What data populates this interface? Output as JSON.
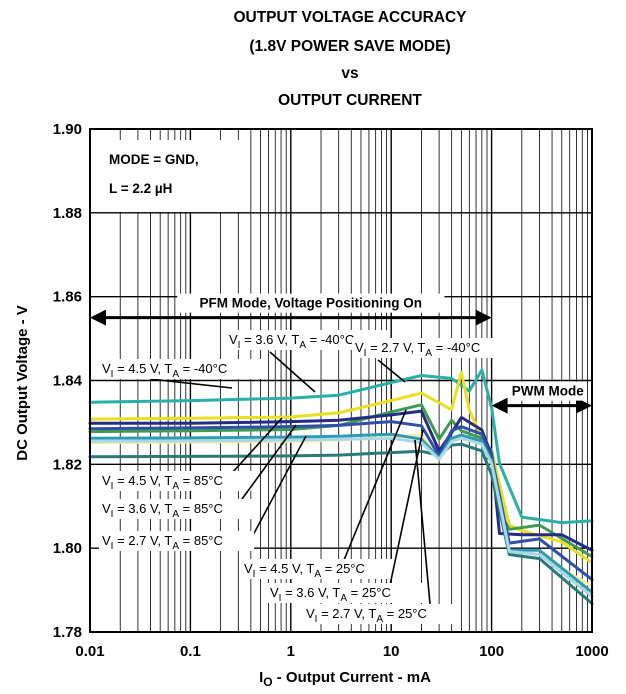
{
  "chart_data": {
    "type": "line",
    "title_lines": [
      "OUTPUT VOLTAGE ACCURACY",
      "(1.8V POWER SAVE MODE)",
      "vs",
      "OUTPUT CURRENT"
    ],
    "xlabel": {
      "main": "I",
      "sub": "O",
      "rest": " - Output Current - mA"
    },
    "ylabel": "DC Output Voltage - V",
    "x_scale": "log",
    "xlim": [
      0.01,
      1000
    ],
    "ylim": [
      1.78,
      1.9
    ],
    "x_ticks": [
      0.01,
      0.1,
      1,
      10,
      100,
      1000
    ],
    "x_tick_labels": [
      "0.01",
      "0.1",
      "1",
      "10",
      "100",
      "1000"
    ],
    "y_ticks": [
      1.78,
      1.8,
      1.82,
      1.84,
      1.86,
      1.88,
      1.9
    ],
    "y_tick_labels": [
      "1.78",
      "1.80",
      "1.82",
      "1.84",
      "1.86",
      "1.88",
      "1.90"
    ],
    "grid": true,
    "conditions": {
      "line1": "MODE = GND,",
      "line2_pre": "L = 2.2 ",
      "line2_unit": "µH"
    },
    "regions": [
      {
        "label": "PFM Mode, Voltage Positioning On",
        "x_start": 0.01,
        "x_end": 100,
        "y": 1.855
      },
      {
        "label": "PWM Mode",
        "x_start": 100,
        "x_end": 1000,
        "y": 1.834
      }
    ],
    "series": [
      {
        "name": "VI = 4.5 V, TA = -40°C",
        "color": "#2ab0a8",
        "points": [
          [
            0.01,
            1.8348
          ],
          [
            0.1,
            1.8352
          ],
          [
            1,
            1.8358
          ],
          [
            3,
            1.8365
          ],
          [
            10,
            1.8395
          ],
          [
            20,
            1.8412
          ],
          [
            40,
            1.8405
          ],
          [
            60,
            1.8375
          ],
          [
            80,
            1.8425
          ],
          [
            100,
            1.8335
          ],
          [
            120,
            1.8202
          ],
          [
            200,
            1.8074
          ],
          [
            500,
            1.8061
          ],
          [
            1000,
            1.8065
          ]
        ]
      },
      {
        "name": "VI = 3.6 V, TA = -40°C",
        "color": "#e8e020",
        "points": [
          [
            0.01,
            1.8308
          ],
          [
            0.1,
            1.831
          ],
          [
            1,
            1.8313
          ],
          [
            3,
            1.8323
          ],
          [
            10,
            1.8352
          ],
          [
            20,
            1.837
          ],
          [
            40,
            1.833
          ],
          [
            50,
            1.842
          ],
          [
            60,
            1.833
          ],
          [
            80,
            1.8262
          ],
          [
            100,
            1.8232
          ],
          [
            150,
            1.8055
          ],
          [
            200,
            1.8042
          ],
          [
            500,
            1.8015
          ],
          [
            1000,
            1.7965
          ]
        ]
      },
      {
        "name": "VI = 2.7 V, TA = -40°C",
        "color": "#3f9a52",
        "points": [
          [
            0.01,
            1.8278
          ],
          [
            0.1,
            1.828
          ],
          [
            1,
            1.8283
          ],
          [
            3,
            1.8293
          ],
          [
            10,
            1.8325
          ],
          [
            20,
            1.8342
          ],
          [
            30,
            1.826
          ],
          [
            40,
            1.8305
          ],
          [
            50,
            1.828
          ],
          [
            80,
            1.8262
          ],
          [
            100,
            1.8232
          ],
          [
            120,
            1.8085
          ],
          [
            150,
            1.8045
          ],
          [
            300,
            1.8055
          ],
          [
            1000,
            1.798
          ]
        ]
      },
      {
        "name": "VI = 4.5 V, TA = 85°C",
        "color": "#252c86",
        "points": [
          [
            0.01,
            1.8298
          ],
          [
            0.1,
            1.8298
          ],
          [
            1,
            1.8302
          ],
          [
            3,
            1.8305
          ],
          [
            10,
            1.8318
          ],
          [
            20,
            1.8327
          ],
          [
            30,
            1.8232
          ],
          [
            40,
            1.8275
          ],
          [
            50,
            1.8312
          ],
          [
            80,
            1.8282
          ],
          [
            100,
            1.8221
          ],
          [
            120,
            1.8035
          ],
          [
            200,
            1.8032
          ],
          [
            500,
            1.8032
          ],
          [
            1000,
            1.7995
          ]
        ]
      },
      {
        "name": "VI = 3.6 V, TA = 85°C",
        "color": "#f2eca6",
        "points": [
          [
            0.01,
            1.8252
          ],
          [
            0.1,
            1.8253
          ],
          [
            1,
            1.8255
          ],
          [
            3,
            1.8258
          ],
          [
            10,
            1.8265
          ],
          [
            20,
            1.827
          ],
          [
            30,
            1.8213
          ],
          [
            40,
            1.8258
          ],
          [
            50,
            1.827
          ],
          [
            80,
            1.8252
          ],
          [
            100,
            1.8205
          ],
          [
            150,
            1.7992
          ],
          [
            300,
            1.7985
          ],
          [
            1000,
            1.7908
          ]
        ]
      },
      {
        "name": "VI = 2.7 V, TA = 85°C",
        "color": "#2a7a78",
        "points": [
          [
            0.01,
            1.8218
          ],
          [
            0.1,
            1.8219
          ],
          [
            1,
            1.822
          ],
          [
            3,
            1.8222
          ],
          [
            10,
            1.8228
          ],
          [
            20,
            1.8231
          ],
          [
            30,
            1.8222
          ],
          [
            40,
            1.8246
          ],
          [
            50,
            1.8248
          ],
          [
            80,
            1.8232
          ],
          [
            100,
            1.8175
          ],
          [
            150,
            1.7985
          ],
          [
            300,
            1.7975
          ],
          [
            1000,
            1.7868
          ]
        ]
      },
      {
        "name": "VI = 4.5 V, TA = 25°C",
        "color": "#2f4fa8",
        "points": [
          [
            0.01,
            1.8285
          ],
          [
            0.1,
            1.8287
          ],
          [
            1,
            1.829
          ],
          [
            3,
            1.8293
          ],
          [
            10,
            1.8302
          ],
          [
            20,
            1.8292
          ],
          [
            30,
            1.822
          ],
          [
            40,
            1.828
          ],
          [
            50,
            1.829
          ],
          [
            80,
            1.8272
          ],
          [
            100,
            1.8218
          ],
          [
            150,
            1.8012
          ],
          [
            300,
            1.8022
          ],
          [
            1000,
            1.7925
          ]
        ]
      },
      {
        "name": "VI = 3.6 V, TA = 25°C",
        "color": "#2e9ab6",
        "points": [
          [
            0.01,
            1.8262
          ],
          [
            0.1,
            1.8263
          ],
          [
            1,
            1.8265
          ],
          [
            3,
            1.8267
          ],
          [
            10,
            1.8272
          ],
          [
            20,
            1.826
          ],
          [
            30,
            1.8215
          ],
          [
            40,
            1.8262
          ],
          [
            50,
            1.827
          ],
          [
            80,
            1.8255
          ],
          [
            100,
            1.8208
          ],
          [
            150,
            1.7995
          ],
          [
            300,
            1.7995
          ],
          [
            1000,
            1.7895
          ]
        ]
      },
      {
        "name": "VI = 2.7 V, TA = 25°C",
        "color": "#a9d9e6",
        "points": [
          [
            0.01,
            1.8255
          ],
          [
            0.1,
            1.8256
          ],
          [
            1,
            1.8258
          ],
          [
            3,
            1.826
          ],
          [
            10,
            1.8262
          ],
          [
            20,
            1.8252
          ],
          [
            30,
            1.8212
          ],
          [
            40,
            1.8255
          ],
          [
            50,
            1.8262
          ],
          [
            80,
            1.8248
          ],
          [
            100,
            1.8202
          ],
          [
            150,
            1.7992
          ],
          [
            300,
            1.7985
          ],
          [
            1000,
            1.7885
          ]
        ]
      }
    ],
    "annotations": [
      {
        "pre": "V",
        "sub1": "I",
        "mid": " = 3.6 V, T",
        "sub2": "A",
        "post": " = -40°C"
      },
      {
        "pre": "V",
        "sub1": "I",
        "mid": " = 2.7 V, T",
        "sub2": "A",
        "post": " = -40°C"
      },
      {
        "pre": "V",
        "sub1": "I",
        "mid": " = 4.5 V, T",
        "sub2": "A",
        "post": " = -40°C"
      },
      {
        "pre": "V",
        "sub1": "I",
        "mid": " = 4.5 V, T",
        "sub2": "A",
        "post": " = 85°C"
      },
      {
        "pre": "V",
        "sub1": "I",
        "mid": " = 3.6 V, T",
        "sub2": "A",
        "post": " = 85°C"
      },
      {
        "pre": "V",
        "sub1": "I",
        "mid": " = 2.7 V, T",
        "sub2": "A",
        "post": " = 85°C"
      },
      {
        "pre": "V",
        "sub1": "I",
        "mid": " = 4.5 V, T",
        "sub2": "A",
        "post": " = 25°C"
      },
      {
        "pre": "V",
        "sub1": "I",
        "mid": " = 3.6 V, T",
        "sub2": "A",
        "post": " = 25°C"
      },
      {
        "pre": "V",
        "sub1": "I",
        "mid": " = 2.7 V, T",
        "sub2": "A",
        "post": " = 25°C"
      }
    ]
  }
}
